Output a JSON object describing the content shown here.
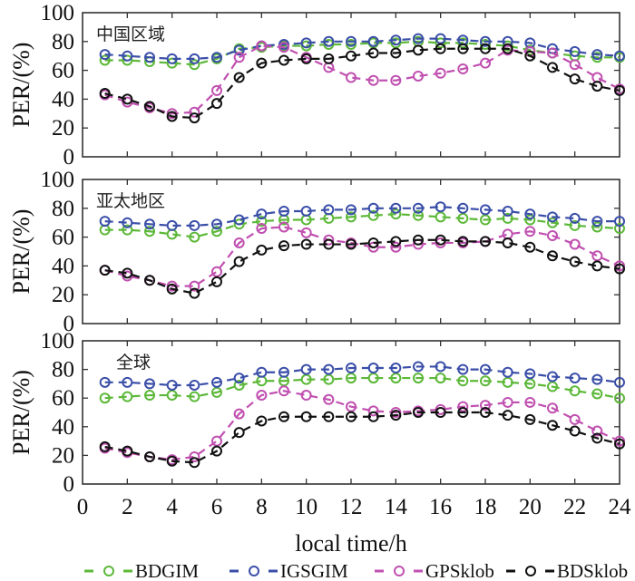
{
  "chart_data": {
    "type": "line",
    "xlabel": "local time/h",
    "ylabel": "PER/(%)",
    "xlim": [
      0,
      24
    ],
    "ylim": [
      0,
      100
    ],
    "x_ticks": [
      0,
      2,
      4,
      6,
      8,
      10,
      12,
      14,
      16,
      18,
      20,
      22,
      24
    ],
    "y_ticks": [
      0,
      20,
      40,
      60,
      80,
      100
    ],
    "grid": false,
    "legend_position": "bottom",
    "x": [
      1,
      2,
      3,
      4,
      5,
      6,
      7,
      8,
      9,
      10,
      11,
      12,
      13,
      14,
      15,
      16,
      17,
      18,
      19,
      20,
      21,
      22,
      23,
      24
    ],
    "legend": [
      {
        "name": "BDGIM",
        "color": "#5cb838"
      },
      {
        "name": "IGSGIM",
        "color": "#3a4ea8"
      },
      {
        "name": "GPSklob",
        "color": "#c050b0"
      },
      {
        "name": "BDSklob",
        "color": "#111111"
      }
    ],
    "panels": [
      {
        "title": "中国区域",
        "series": [
          {
            "name": "BDGIM",
            "values": [
              67,
              67,
              66,
              65,
              64,
              68,
              75,
              76,
              77,
              77,
              78,
              78,
              79,
              79,
              80,
              79,
              79,
              78,
              77,
              74,
              72,
              70,
              69,
              69
            ]
          },
          {
            "name": "IGSGIM",
            "values": [
              71,
              70,
              69,
              68,
              68,
              69,
              74,
              77,
              78,
              79,
              80,
              80,
              80,
              81,
              82,
              82,
              81,
              80,
              80,
              79,
              75,
              73,
              71,
              70
            ]
          },
          {
            "name": "GPSklob",
            "values": [
              43,
              38,
              34,
              30,
              31,
              46,
              69,
              77,
              76,
              69,
              62,
              55,
              53,
              53,
              56,
              58,
              61,
              65,
              74,
              73,
              72,
              64,
              55,
              47
            ]
          },
          {
            "name": "BDSklob",
            "values": [
              44,
              40,
              35,
              28,
              27,
              37,
              55,
              65,
              67,
              68,
              68,
              70,
              72,
              72,
              74,
              75,
              75,
              75,
              75,
              70,
              62,
              54,
              49,
              46
            ]
          }
        ]
      },
      {
        "title": "亚太地区",
        "series": [
          {
            "name": "BDGIM",
            "values": [
              65,
              65,
              64,
              62,
              60,
              64,
              69,
              71,
              72,
              72,
              73,
              74,
              75,
              76,
              75,
              74,
              73,
              72,
              73,
              72,
              70,
              68,
              67,
              66
            ]
          },
          {
            "name": "IGSGIM",
            "values": [
              71,
              70,
              69,
              68,
              68,
              69,
              72,
              76,
              78,
              78,
              79,
              79,
              80,
              80,
              80,
              81,
              80,
              79,
              78,
              76,
              74,
              73,
              71,
              71
            ]
          },
          {
            "name": "GPSklob",
            "values": [
              37,
              33,
              30,
              26,
              26,
              36,
              56,
              66,
              67,
              63,
              58,
              56,
              53,
              53,
              55,
              56,
              56,
              57,
              62,
              64,
              61,
              55,
              47,
              40
            ]
          },
          {
            "name": "BDSklob",
            "values": [
              37,
              35,
              30,
              24,
              21,
              29,
              43,
              51,
              54,
              55,
              55,
              55,
              56,
              57,
              58,
              58,
              57,
              57,
              56,
              53,
              47,
              43,
              40,
              38
            ]
          }
        ]
      },
      {
        "title": "全球",
        "series": [
          {
            "name": "BDGIM",
            "values": [
              60,
              61,
              62,
              62,
              61,
              64,
              69,
              72,
              72,
              73,
              73,
              74,
              74,
              74,
              74,
              74,
              72,
              72,
              71,
              70,
              68,
              65,
              63,
              60
            ]
          },
          {
            "name": "IGSGIM",
            "values": [
              71,
              71,
              70,
              69,
              69,
              71,
              74,
              78,
              78,
              80,
              80,
              81,
              81,
              81,
              82,
              82,
              80,
              80,
              78,
              77,
              75,
              74,
              73,
              71
            ]
          },
          {
            "name": "GPSklob",
            "values": [
              25,
              22,
              19,
              17,
              19,
              30,
              49,
              62,
              65,
              62,
              59,
              54,
              51,
              50,
              51,
              52,
              54,
              55,
              57,
              57,
              53,
              45,
              37,
              30
            ]
          },
          {
            "name": "BDSklob",
            "values": [
              26,
              23,
              19,
              16,
              15,
              23,
              36,
              44,
              47,
              47,
              47,
              47,
              47,
              48,
              50,
              50,
              50,
              50,
              48,
              45,
              41,
              37,
              32,
              28
            ]
          }
        ]
      }
    ]
  }
}
